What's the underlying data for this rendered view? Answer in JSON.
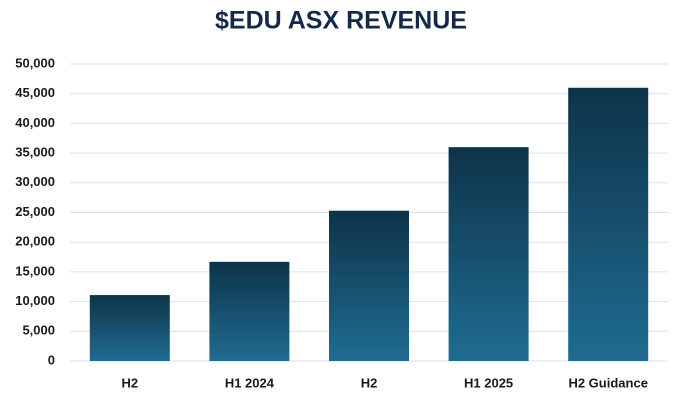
{
  "chart_data": {
    "type": "bar",
    "title": "$EDU ASX REVENUE",
    "categories": [
      "H2",
      "H1 2024",
      "H2",
      "H1 2025",
      "H2 Guidance"
    ],
    "values": [
      11100,
      16700,
      25300,
      36000,
      46000
    ],
    "gradient": [
      "#0e3349",
      "#1f6c91"
    ],
    "ylim": [
      0,
      50000
    ],
    "yticks": [
      0,
      {
        "value": 5000,
        "label": "5,000"
      },
      {
        "value": 10000,
        "label": "10,000"
      },
      {
        "value": 15000,
        "label": "15,000"
      },
      {
        "value": 20000,
        "label": "20,000"
      },
      {
        "value": 25000,
        "label": "25,000"
      },
      {
        "value": 30000,
        "label": "30,000"
      },
      {
        "value": 35000,
        "label": "35,000"
      },
      {
        "value": 40000,
        "label": "40,000"
      },
      {
        "value": 45000,
        "label": "45,000"
      },
      {
        "value": 50000,
        "label": "50,000"
      }
    ],
    "grid": true
  }
}
